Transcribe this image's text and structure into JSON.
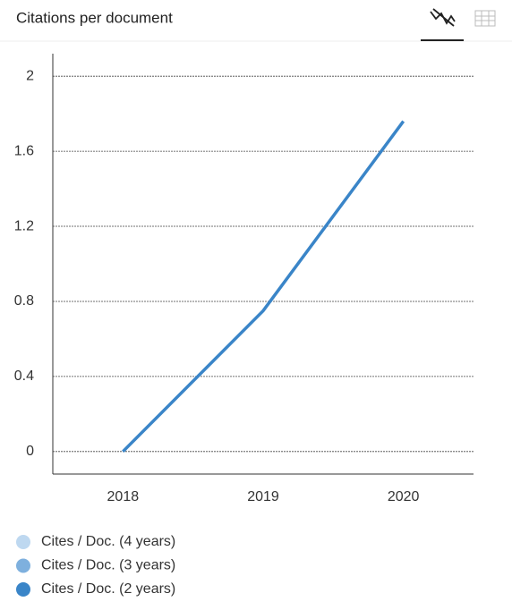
{
  "chart_data": {
    "type": "line",
    "title": "Citations per document",
    "categories": [
      "2018",
      "2019",
      "2020"
    ],
    "series": [
      {
        "name": "Cites / Doc. (4 years)",
        "color": "#bed8f0",
        "values": [
          null,
          null,
          null
        ]
      },
      {
        "name": "Cites / Doc. (3 years)",
        "color": "#7eb0de",
        "values": [
          null,
          null,
          null
        ]
      },
      {
        "name": "Cites / Doc. (2 years)",
        "color": "#3a85c8",
        "values": [
          0,
          0.75,
          1.76
        ]
      }
    ],
    "ylim": [
      -0.12,
      2.12
    ],
    "yticks": [
      0,
      0.4,
      0.8,
      1.2,
      1.6,
      2
    ],
    "grid": true
  }
}
